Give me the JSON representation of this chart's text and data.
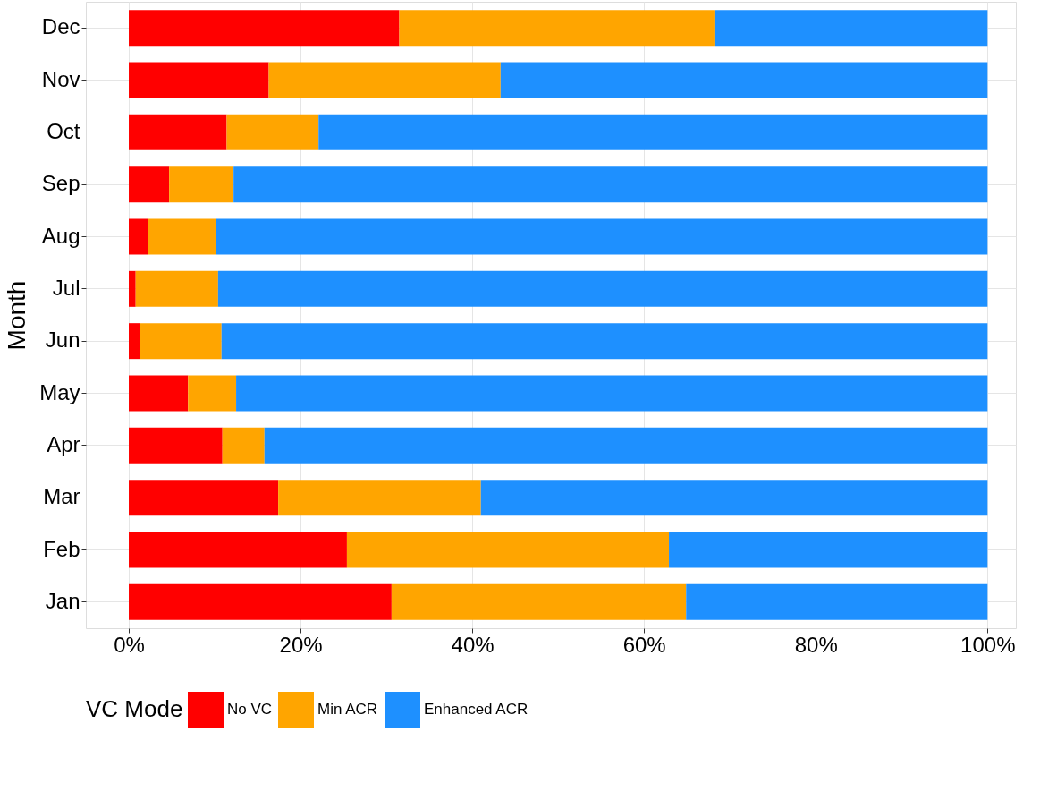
{
  "chart_data": {
    "type": "bar",
    "orientation": "horizontal",
    "stacked": true,
    "ylabel": "Month",
    "legend_title": "VC Mode",
    "legend": "bottom",
    "grid": true,
    "categories": [
      "Dec",
      "Nov",
      "Oct",
      "Sep",
      "Aug",
      "Jul",
      "Jun",
      "May",
      "Apr",
      "Mar",
      "Feb",
      "Jan"
    ],
    "series": [
      {
        "name": "No VC",
        "color": "#ff0000",
        "values": [
          31.5,
          16.3,
          11.4,
          4.7,
          2.2,
          0.8,
          1.3,
          6.9,
          10.9,
          17.4,
          25.4,
          30.6
        ]
      },
      {
        "name": "Min ACR",
        "color": "#ffa500",
        "values": [
          36.7,
          27.0,
          10.7,
          7.5,
          8.0,
          9.6,
          9.5,
          5.6,
          4.9,
          23.6,
          37.5,
          34.3
        ]
      },
      {
        "name": "Enhanced ACR",
        "color": "#1e90ff",
        "values": [
          31.8,
          56.7,
          77.9,
          87.8,
          89.8,
          89.6,
          89.2,
          87.5,
          84.2,
          59.0,
          37.1,
          35.1
        ]
      }
    ],
    "xlim": [
      -5,
      103.3
    ],
    "xticks": [
      {
        "value": 0,
        "label": "0%"
      },
      {
        "value": 20,
        "label": "20%"
      },
      {
        "value": 40,
        "label": "40%"
      },
      {
        "value": 60,
        "label": "60%"
      },
      {
        "value": 80,
        "label": "80%"
      },
      {
        "value": 100,
        "label": "100%"
      }
    ]
  }
}
